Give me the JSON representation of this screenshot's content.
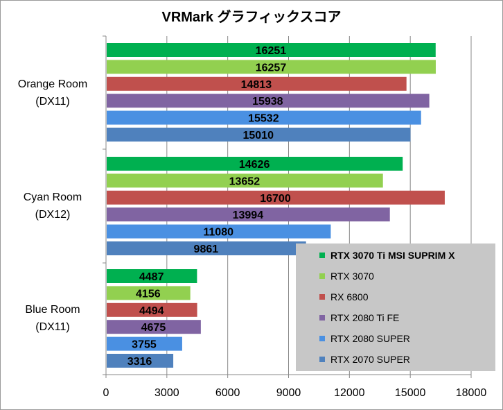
{
  "chart_data": {
    "type": "bar",
    "orientation": "horizontal",
    "title": "VRMark グラフィックスコア",
    "categories": [
      {
        "line1": "Orange Room",
        "line2": "(DX11)"
      },
      {
        "line1": "Cyan Room",
        "line2": "(DX12)"
      },
      {
        "line1": "Blue Room",
        "line2": "(DX11)"
      }
    ],
    "series": [
      {
        "name": "RTX 3070 Ti MSI SUPRIM X",
        "color": "#00b050",
        "values": [
          16251,
          14626,
          4487
        ]
      },
      {
        "name": "RTX 3070",
        "color": "#92d050",
        "values": [
          16257,
          13652,
          4156
        ]
      },
      {
        "name": "RX 6800",
        "color": "#c0504d",
        "values": [
          14813,
          16700,
          4494
        ]
      },
      {
        "name": "RTX 2080 Ti FE",
        "color": "#8064a2",
        "values": [
          15938,
          13994,
          4675
        ]
      },
      {
        "name": "RTX 2080 SUPER",
        "color": "#4a90e2",
        "values": [
          15532,
          11080,
          3755
        ]
      },
      {
        "name": "RTX 2070 SUPER",
        "color": "#4f81bd",
        "values": [
          15010,
          9861,
          3316
        ]
      }
    ],
    "xlim": [
      0,
      18000
    ],
    "xticks": [
      0,
      3000,
      6000,
      9000,
      12000,
      15000,
      18000
    ],
    "xtick_labels": [
      "0",
      "3000",
      "6000",
      "9000",
      "12000",
      "15000",
      "18000"
    ],
    "grid": "vertical",
    "legend_position": "bottom-right",
    "legend_bold_series": "RTX 3070 Ti MSI SUPRIM X"
  }
}
